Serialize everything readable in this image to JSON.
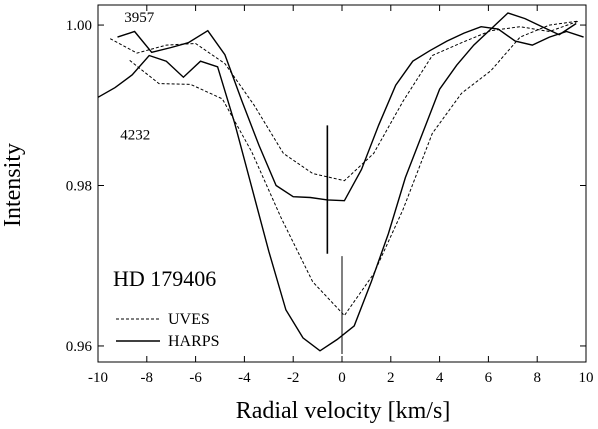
{
  "chart_data": {
    "type": "line",
    "title": "HD 179406",
    "xlabel": "Radial velocity [km/s]",
    "ylabel": "Intensity",
    "xlim": [
      -10,
      10
    ],
    "ylim": [
      0.958,
      1.0025
    ],
    "xticks": [
      -10,
      -8,
      -6,
      -4,
      -2,
      0,
      2,
      4,
      6,
      8,
      10
    ],
    "yticks": [
      0.96,
      0.98,
      1.0
    ],
    "ytick_labels": [
      "0.96",
      "0.98",
      "1.00"
    ],
    "annotations": [
      {
        "text": "3957",
        "x": -9.5,
        "y": 1.0
      },
      {
        "text": "4232",
        "x": -9.5,
        "y": 0.9865
      }
    ],
    "legend": {
      "position": "bottom-left",
      "entries": [
        "UVES",
        "HARPS"
      ]
    },
    "series": [
      {
        "name": "UVES",
        "style": "dashed",
        "group": "3957",
        "x": [
          -9.5,
          -8.4,
          -7.2,
          -6.0,
          -4.8,
          -3.6,
          -2.4,
          -1.2,
          0.1,
          1.3,
          2.5,
          3.7,
          4.9,
          6.1,
          7.3,
          8.5,
          9.7
        ],
        "y": [
          0.9983,
          0.9965,
          0.9975,
          0.9977,
          0.9952,
          0.99,
          0.984,
          0.9815,
          0.9806,
          0.984,
          0.9905,
          0.9962,
          0.9978,
          0.9993,
          0.9998,
          0.9992,
          1.0005
        ]
      },
      {
        "name": "HARPS",
        "style": "solid",
        "group": "3957",
        "x": [
          -9.2,
          -8.5,
          -7.8,
          -7.0,
          -6.3,
          -5.5,
          -4.8,
          -4.1,
          -3.4,
          -2.7,
          -2.0,
          -1.3,
          -0.6,
          0.1,
          0.8,
          1.5,
          2.2,
          2.9,
          3.6,
          4.3,
          5.0,
          5.7,
          6.4,
          7.1,
          7.8,
          8.5,
          9.2,
          9.9
        ],
        "y": [
          0.9985,
          0.9992,
          0.9966,
          0.9972,
          0.9978,
          0.9993,
          0.9963,
          0.9905,
          0.985,
          0.98,
          0.9786,
          0.9785,
          0.9782,
          0.9781,
          0.982,
          0.9875,
          0.9925,
          0.9955,
          0.9968,
          0.998,
          0.999,
          0.9998,
          0.9995,
          0.998,
          0.9975,
          0.9985,
          0.9992,
          0.9985
        ]
      },
      {
        "name": "UVES",
        "style": "dashed",
        "group": "4232",
        "x": [
          -8.7,
          -7.5,
          -6.2,
          -4.9,
          -3.7,
          -2.5,
          -1.2,
          0.1,
          1.3,
          2.5,
          3.7,
          4.9,
          6.1,
          7.3,
          8.5,
          9.7
        ],
        "y": [
          0.9956,
          0.9927,
          0.9926,
          0.9908,
          0.9842,
          0.976,
          0.968,
          0.9638,
          0.969,
          0.977,
          0.9865,
          0.9915,
          0.9943,
          0.9985,
          1.0,
          1.0005
        ]
      },
      {
        "name": "HARPS",
        "style": "solid",
        "group": "4232",
        "x": [
          -10.0,
          -9.3,
          -8.6,
          -7.9,
          -7.2,
          -6.5,
          -5.8,
          -5.1,
          -4.4,
          -3.7,
          -3.0,
          -2.3,
          -1.6,
          -0.9,
          -0.2,
          0.5,
          1.2,
          1.9,
          2.6,
          3.3,
          4.0,
          4.7,
          5.4,
          6.1,
          6.8,
          7.5,
          8.2,
          8.9,
          9.6
        ],
        "y": [
          0.991,
          0.9922,
          0.9938,
          0.9962,
          0.9955,
          0.9935,
          0.9955,
          0.9948,
          0.9878,
          0.9798,
          0.9718,
          0.9645,
          0.961,
          0.9594,
          0.9608,
          0.9625,
          0.968,
          0.974,
          0.981,
          0.9865,
          0.992,
          0.995,
          0.9975,
          0.9995,
          1.0015,
          1.0008,
          0.9998,
          0.9988,
          1.0002
        ]
      }
    ],
    "markers": [
      {
        "x": -0.6,
        "y_from": 0.9715,
        "y_to": 0.9875
      },
      {
        "x": 0.0,
        "y_from": 0.959,
        "y_to": 0.9712
      }
    ]
  }
}
